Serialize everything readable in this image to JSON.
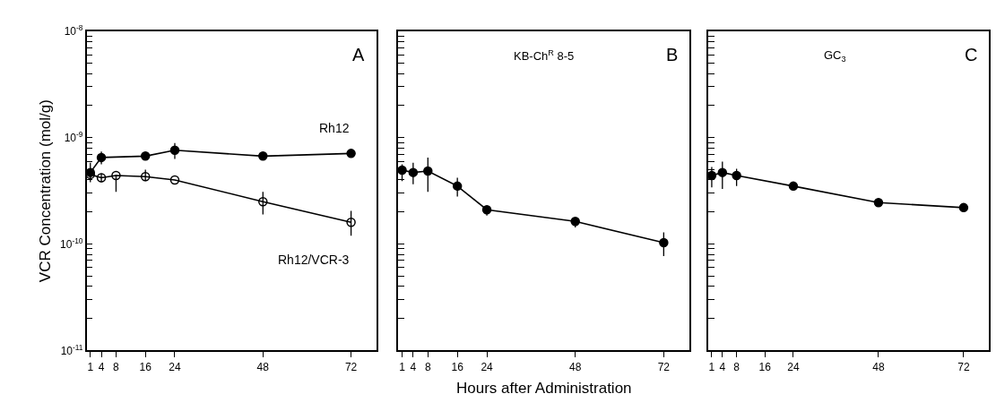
{
  "chart_data": [
    {
      "type": "line",
      "annotations": [
        "A"
      ],
      "ylabel": "VCR Concentration (mol/g)",
      "log": "y",
      "line_style": "solid",
      "xlim": [
        0,
        79
      ],
      "xticks": [
        1,
        4,
        8,
        16,
        24,
        48,
        72
      ],
      "ylim": [
        1e-11,
        1e-08
      ],
      "yticks": [
        {
          "value": 1e-11,
          "label": "10$^{-11}$"
        },
        {
          "value": 2e-11,
          "label": null
        },
        {
          "value": 3e-11,
          "label": null
        },
        {
          "value": 4e-11,
          "label": null
        },
        {
          "value": 5e-11,
          "label": null
        },
        {
          "value": 6e-11,
          "label": null
        },
        {
          "value": 7e-11,
          "label": null
        },
        {
          "value": 8e-11,
          "label": null
        },
        {
          "value": 9e-11,
          "label": null
        },
        {
          "value": 1e-10,
          "label": "10$^{-10}$"
        },
        {
          "value": 2e-10,
          "label": null
        },
        {
          "value": 3e-10,
          "label": null
        },
        {
          "value": 4e-10,
          "label": null
        },
        {
          "value": 5e-10,
          "label": null
        },
        {
          "value": 6e-10,
          "label": null
        },
        {
          "value": 7e-10,
          "label": null
        },
        {
          "value": 8e-10,
          "label": null
        },
        {
          "value": 9e-10,
          "label": null
        },
        {
          "value": 1e-09,
          "label": "10$^{-9}$"
        },
        {
          "value": 2e-09,
          "label": null
        },
        {
          "value": 3e-09,
          "label": null
        },
        {
          "value": 4e-09,
          "label": null
        },
        {
          "value": 5e-09,
          "label": null
        },
        {
          "value": 6e-09,
          "label": null
        },
        {
          "value": 7e-09,
          "label": null
        },
        {
          "value": 8e-09,
          "label": null
        },
        {
          "value": 9e-09,
          "label": null
        },
        {
          "value": 1e-08,
          "label": "10$^{-8}$"
        }
      ],
      "x": [
        1,
        4,
        16,
        24,
        48,
        72
      ],
      "series": [
        {
          "name": "Rh12",
          "color": "#000000",
          "marker": "circle",
          "values": [
            4.7e-10,
            6.5e-10,
            6.7e-10,
            7.6e-10,
            6.7e-10,
            7.1e-10
          ],
          "errors": [
            [
              3.8e-10,
              5.8e-10
            ],
            [
              5.6e-10,
              7.4e-10
            ],
            [
              6.2e-10,
              7.1e-10
            ],
            [
              6.3e-10,
              8.9e-10
            ],
            null,
            null
          ]
        },
        {
          "name": "Rh12/VCR-3",
          "color": "#000000",
          "marker": "circle-open",
          "x": [
            1,
            4,
            8,
            16,
            24,
            48,
            72
          ],
          "values": [
            4.5e-10,
            4.2e-10,
            4.4e-10,
            4.3e-10,
            4e-10,
            2.5e-10,
            1.6e-10
          ],
          "errors": [
            null,
            [
              3.8e-10,
              4.6e-10
            ],
            [
              3.1e-10,
              4.5e-10
            ],
            [
              3.9e-10,
              5e-10
            ],
            null,
            [
              1.9e-10,
              3.1e-10
            ],
            [
              1.2e-10,
              2.05e-10
            ]
          ]
        }
      ]
    },
    {
      "type": "line",
      "title": "KB-Ch$^{R}$ 8-5",
      "annotations": [
        "B"
      ],
      "xlabel": "Hours after Administration",
      "log": "y",
      "line_style": "solid",
      "tick_labels": "x",
      "xlim": [
        0,
        79
      ],
      "xticks": [
        1,
        4,
        8,
        16,
        24,
        48,
        72
      ],
      "ylim": [
        1e-11,
        1e-08
      ],
      "yticks": [
        {
          "value": 1e-11,
          "label": null
        },
        {
          "value": 2e-11,
          "label": null
        },
        {
          "value": 3e-11,
          "label": null
        },
        {
          "value": 4e-11,
          "label": null
        },
        {
          "value": 5e-11,
          "label": null
        },
        {
          "value": 6e-11,
          "label": null
        },
        {
          "value": 7e-11,
          "label": null
        },
        {
          "value": 8e-11,
          "label": null
        },
        {
          "value": 9e-11,
          "label": null
        },
        {
          "value": 1e-10,
          "label": null
        },
        {
          "value": 2e-10,
          "label": null
        },
        {
          "value": 3e-10,
          "label": null
        },
        {
          "value": 4e-10,
          "label": null
        },
        {
          "value": 5e-10,
          "label": null
        },
        {
          "value": 6e-10,
          "label": null
        },
        {
          "value": 7e-10,
          "label": null
        },
        {
          "value": 8e-10,
          "label": null
        },
        {
          "value": 9e-10,
          "label": null
        },
        {
          "value": 1e-09,
          "label": null
        },
        {
          "value": 2e-09,
          "label": null
        },
        {
          "value": 3e-09,
          "label": null
        },
        {
          "value": 4e-09,
          "label": null
        },
        {
          "value": 5e-09,
          "label": null
        },
        {
          "value": 6e-09,
          "label": null
        },
        {
          "value": 7e-09,
          "label": null
        },
        {
          "value": 8e-09,
          "label": null
        },
        {
          "value": 9e-09,
          "label": null
        },
        {
          "value": 1e-08,
          "label": null
        }
      ],
      "x": [
        1,
        4,
        8,
        16,
        24,
        48,
        72
      ],
      "series": [
        {
          "color": "#000000",
          "marker": "circle",
          "values": [
            4.95e-10,
            4.7e-10,
            4.85e-10,
            3.5e-10,
            2.1e-10,
            1.63e-10,
            1.03e-10
          ],
          "errors": [
            [
              3.9e-10,
              5.6e-10
            ],
            [
              3.65e-10,
              5.8e-10
            ],
            [
              3.1e-10,
              6.5e-10
            ],
            [
              2.8e-10,
              4.2e-10
            ],
            [
              1.85e-10,
              2.25e-10
            ],
            [
              1.43e-10,
              1.76e-10
            ],
            [
              7.7e-11,
              1.29e-10
            ]
          ]
        }
      ]
    },
    {
      "type": "line",
      "title": "GC$_{3}$",
      "annotations": [
        "C"
      ],
      "log": "y",
      "line_style": "solid",
      "tick_labels": "x",
      "xlim": [
        0,
        79
      ],
      "xticks": [
        1,
        4,
        8,
        16,
        24,
        48,
        72
      ],
      "ylim": [
        1e-11,
        1e-08
      ],
      "yticks": [
        {
          "value": 1e-11,
          "label": null
        },
        {
          "value": 2e-11,
          "label": null
        },
        {
          "value": 3e-11,
          "label": null
        },
        {
          "value": 4e-11,
          "label": null
        },
        {
          "value": 5e-11,
          "label": null
        },
        {
          "value": 6e-11,
          "label": null
        },
        {
          "value": 7e-11,
          "label": null
        },
        {
          "value": 8e-11,
          "label": null
        },
        {
          "value": 9e-11,
          "label": null
        },
        {
          "value": 1e-10,
          "label": null
        },
        {
          "value": 2e-10,
          "label": null
        },
        {
          "value": 3e-10,
          "label": null
        },
        {
          "value": 4e-10,
          "label": null
        },
        {
          "value": 5e-10,
          "label": null
        },
        {
          "value": 6e-10,
          "label": null
        },
        {
          "value": 7e-10,
          "label": null
        },
        {
          "value": 8e-10,
          "label": null
        },
        {
          "value": 9e-10,
          "label": null
        },
        {
          "value": 1e-09,
          "label": null
        },
        {
          "value": 2e-09,
          "label": null
        },
        {
          "value": 3e-09,
          "label": null
        },
        {
          "value": 4e-09,
          "label": null
        },
        {
          "value": 5e-09,
          "label": null
        },
        {
          "value": 6e-09,
          "label": null
        },
        {
          "value": 7e-09,
          "label": null
        },
        {
          "value": 8e-09,
          "label": null
        },
        {
          "value": 9e-09,
          "label": null
        },
        {
          "value": 1e-08,
          "label": null
        }
      ],
      "x": [
        1,
        4,
        8,
        24,
        48,
        72
      ],
      "series": [
        {
          "color": "#000000",
          "marker": "circle",
          "values": [
            4.4e-10,
            4.7e-10,
            4.4e-10,
            3.5e-10,
            2.45e-10,
            2.2e-10
          ],
          "errors": [
            [
              3.4e-10,
              5.3e-10
            ],
            [
              3.3e-10,
              5.95e-10
            ],
            [
              3.5e-10,
              5.1e-10
            ],
            [
              3.2e-10,
              3.8e-10
            ],
            null,
            null
          ]
        }
      ]
    }
  ]
}
